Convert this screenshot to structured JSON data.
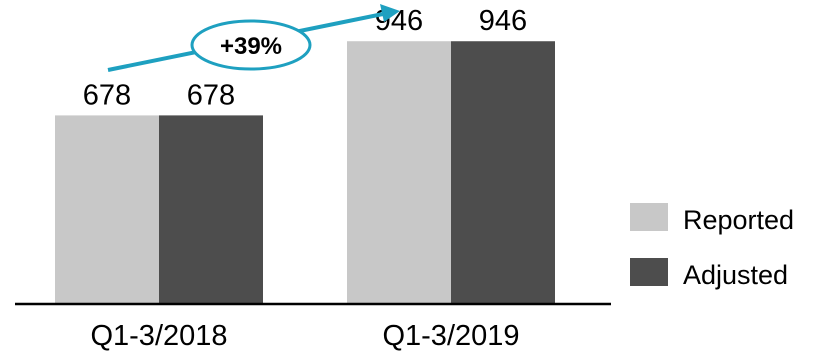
{
  "chart_data": {
    "type": "bar",
    "categories": [
      "Q1-3/2018",
      "Q1-3/2019"
    ],
    "series": [
      {
        "name": "Reported",
        "values": [
          678,
          946
        ],
        "color": "#c8c8c8"
      },
      {
        "name": "Adjusted",
        "values": [
          678,
          946
        ],
        "color": "#4d4d4d"
      }
    ],
    "annotation": {
      "label": "+39%",
      "arrow_color": "#1ea0c0"
    },
    "ylim": [
      0,
      1095
    ],
    "legend": "right",
    "grid": false
  }
}
